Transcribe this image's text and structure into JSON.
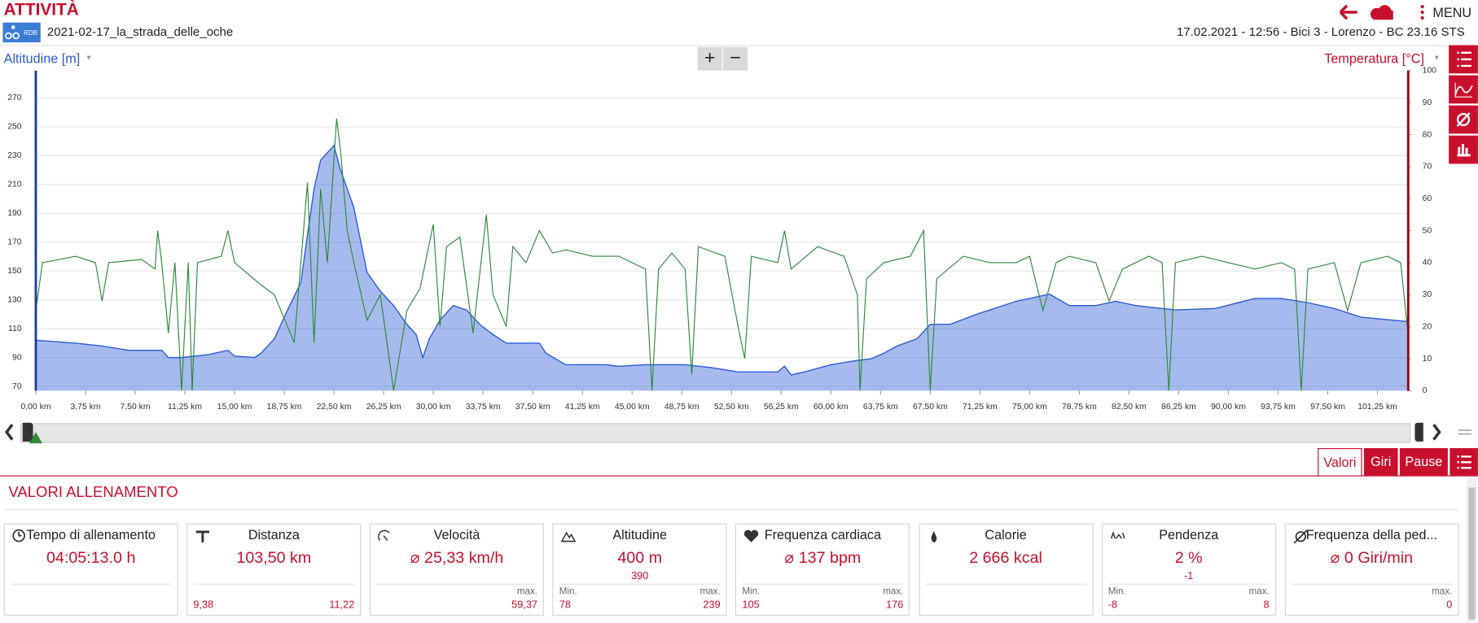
{
  "header": {
    "title": "ATTIVITÀ",
    "badge": "RDB",
    "file_name": "2021-02-17_la_strada_delle_oche",
    "info": "17.02.2021  -  12:56  -  Bici 3  -  Lorenzo  -  BC 23.16 STS",
    "menu": "MENU"
  },
  "zoom": [
    "+",
    "−"
  ],
  "chart_data": {
    "type": "line",
    "xlim": [
      0,
      103.5
    ],
    "xticks": [
      {
        "value": 0,
        "label": "0,00 km"
      },
      {
        "value": 3.75,
        "label": "3,75 km"
      },
      {
        "value": 7.5,
        "label": "7,50 km"
      },
      {
        "value": 11.25,
        "label": "11,25 km"
      },
      {
        "value": 15,
        "label": "15,00 km"
      },
      {
        "value": 18.75,
        "label": "18,75 km"
      },
      {
        "value": 22.5,
        "label": "22,50 km"
      },
      {
        "value": 26.25,
        "label": "26,25 km"
      },
      {
        "value": 30,
        "label": "30,00 km"
      },
      {
        "value": 33.75,
        "label": "33,75 km"
      },
      {
        "value": 37.5,
        "label": "37,50 km"
      },
      {
        "value": 41.25,
        "label": "41,25 km"
      },
      {
        "value": 45,
        "label": "45,00 km"
      },
      {
        "value": 48.75,
        "label": "48,75 km"
      },
      {
        "value": 52.5,
        "label": "52,50 km"
      },
      {
        "value": 56.25,
        "label": "56,25 km"
      },
      {
        "value": 60,
        "label": "60,00 km"
      },
      {
        "value": 63.75,
        "label": "63,75 km"
      },
      {
        "value": 67.5,
        "label": "67,50 km"
      },
      {
        "value": 71.25,
        "label": "71,25 km"
      },
      {
        "value": 75,
        "label": "75,00 km"
      },
      {
        "value": 78.75,
        "label": "78,75 km"
      },
      {
        "value": 82.5,
        "label": "82,50 km"
      },
      {
        "value": 86.25,
        "label": "86,25 km"
      },
      {
        "value": 90,
        "label": "90,00 km"
      },
      {
        "value": 93.75,
        "label": "93,75 km"
      },
      {
        "value": 97.5,
        "label": "97,50 km"
      },
      {
        "value": 101.25,
        "label": "101,25 km"
      }
    ],
    "ylim": [
      67,
      289
    ],
    "yticks": [
      70,
      90,
      110,
      130,
      150,
      170,
      190,
      210,
      230,
      250,
      270
    ],
    "y2lim": [
      0,
      100
    ],
    "y2ticks": [
      0,
      10,
      20,
      30,
      40,
      50,
      60,
      70,
      80,
      90,
      100
    ],
    "grid": true,
    "series": [
      {
        "name": "Altitudine [m]",
        "color": "#2a5bd7",
        "fill": true,
        "x": [
          0,
          3,
          5,
          7,
          9.5,
          10,
          11,
          13,
          14.5,
          15,
          16.5,
          17,
          18,
          19,
          20,
          20.5,
          21,
          21.5,
          22.5,
          23,
          23.5,
          24,
          25,
          26,
          27,
          28,
          28.7,
          29.2,
          29.7,
          30.5,
          31.5,
          32.5,
          33.5,
          34.5,
          35.5,
          38,
          38.5,
          40,
          43,
          44,
          46,
          49,
          51,
          53,
          56,
          56.5,
          57,
          58,
          60,
          62,
          63,
          64,
          65,
          66.5,
          67.5,
          69,
          71,
          74,
          76.5,
          78,
          80,
          81.5,
          83,
          86,
          89,
          92,
          94,
          96,
          98,
          100,
          103.5
        ],
        "values": [
          102,
          100,
          98,
          95,
          95,
          90,
          90,
          92,
          95,
          91,
          90,
          93,
          103,
          123,
          142,
          175,
          207,
          227,
          237,
          220,
          207,
          194,
          149,
          136,
          126,
          113,
          106,
          90,
          103,
          116,
          126,
          123,
          113,
          106,
          100,
          100,
          93,
          85,
          85,
          84,
          85,
          85,
          83,
          80,
          80,
          84,
          78,
          80,
          85,
          88,
          89,
          93,
          98,
          103,
          113,
          113,
          120,
          129,
          134,
          126,
          126,
          129,
          126,
          123,
          124,
          131,
          131,
          128,
          124,
          118,
          115
        ]
      },
      {
        "name": "Temperatura [°C]",
        "color": "#2e8b3a",
        "axis": "y2",
        "x": [
          0,
          0.5,
          3,
          4.5,
          5,
          5.5,
          8,
          9,
          9.2,
          9.5,
          10,
          10.5,
          11,
          11.5,
          11.8,
          12.2,
          14,
          14.5,
          15,
          17,
          18,
          19,
          19.5,
          20,
          20.5,
          21,
          21.5,
          22,
          22.7,
          23,
          23.5,
          24,
          25,
          26,
          27,
          28,
          29,
          30,
          30.5,
          31,
          32,
          33,
          34,
          34.5,
          35.5,
          36,
          37,
          38,
          39,
          40,
          42,
          44,
          46,
          46.5,
          47,
          48,
          49,
          49.5,
          50,
          52,
          53,
          53.5,
          54,
          56,
          56.5,
          57,
          59,
          61,
          62,
          62.2,
          62.7,
          64,
          66,
          67,
          67.5,
          68,
          70,
          72,
          74,
          75,
          76,
          77,
          78,
          80,
          81,
          82,
          84,
          85,
          85.5,
          86,
          88,
          90,
          92,
          94,
          95,
          95.5,
          96,
          98,
          99,
          100,
          102,
          103,
          103.5
        ],
        "values": [
          25,
          40,
          42,
          40,
          28,
          40,
          41,
          38,
          50,
          40,
          18,
          40,
          0,
          40,
          0,
          40,
          42,
          50,
          40,
          33,
          30,
          20,
          15,
          40,
          65,
          15,
          63,
          40,
          85,
          75,
          50,
          40,
          22,
          30,
          0,
          25,
          32,
          52,
          20,
          45,
          48,
          18,
          55,
          30,
          20,
          45,
          40,
          50,
          43,
          44,
          42,
          42,
          38,
          0,
          38,
          43,
          38,
          5,
          45,
          42,
          20,
          10,
          42,
          40,
          50,
          38,
          45,
          42,
          30,
          0,
          35,
          40,
          42,
          50,
          0,
          35,
          42,
          40,
          40,
          42,
          25,
          40,
          42,
          40,
          28,
          38,
          42,
          40,
          0,
          40,
          42,
          40,
          38,
          40,
          38,
          0,
          38,
          40,
          25,
          40,
          42,
          40,
          20
        ]
      }
    ]
  },
  "tabs": [
    "Valori",
    "Giri",
    "Pause"
  ],
  "section_title": "VALORI ALLENAMENTO",
  "cards": [
    {
      "title": "Tempo di allenamento",
      "value": "04:05:13.0 h"
    },
    {
      "title": "Distanza",
      "value": "103,50 km",
      "left_value": "9,38",
      "right_value": "11,22"
    },
    {
      "title": "Velocità",
      "value": "⌀ 25,33 km/h",
      "right_label": "max.",
      "right_value": "59,37"
    },
    {
      "title": "Altitudine",
      "value": "400 m",
      "sub": "390",
      "left_label": "Min.",
      "left_value": "78",
      "right_label": "max.",
      "right_value": "239"
    },
    {
      "title": "Frequenza cardiaca",
      "value": "⌀ 137 bpm",
      "left_label": "Min.",
      "left_value": "105",
      "right_label": "max.",
      "right_value": "176"
    },
    {
      "title": "Calorie",
      "value": "2 666 kcal"
    },
    {
      "title": "Pendenza",
      "value": "2 %",
      "sub": "-1",
      "left_label": "Min.",
      "left_value": "-8",
      "right_label": "max.",
      "right_value": "8"
    },
    {
      "title": "Frequenza della ped...",
      "value": "⌀ 0 Giri/min",
      "right_label": "max.",
      "right_value": "0"
    }
  ]
}
